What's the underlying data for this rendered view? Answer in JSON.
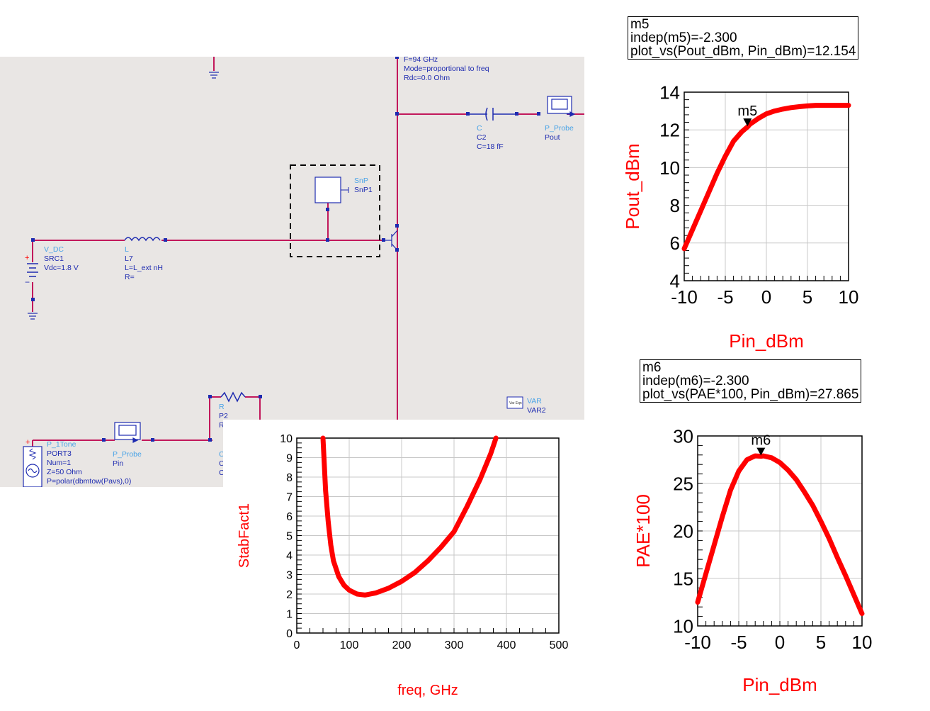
{
  "schematic": {
    "freq_label": "F=94 GHz",
    "mode_label": "Mode=proportional to freq",
    "rdc_label": "Rdc=0.0 Ohm",
    "cap": {
      "type": "C",
      "name": "C2",
      "value": "C=18 fF"
    },
    "probe_out": {
      "type": "P_Probe",
      "name": "Pout"
    },
    "snp": {
      "type": "SnP",
      "name": "SnP1"
    },
    "vdc": {
      "type": "V_DC",
      "name": "SRC1",
      "value": "Vdc=1.8 V"
    },
    "inductor": {
      "type": "L",
      "name": "L7",
      "value": "L=L_ext nH",
      "r": "R="
    },
    "resistor": {
      "type": "R",
      "name": "P2",
      "value": "R"
    },
    "var": {
      "icon": "Var Eqn",
      "type": "VAR",
      "name": "VAR2"
    },
    "port": {
      "type": "P_1Tone",
      "name": "PORT3",
      "num": "Num=1",
      "z": "Z=50 Ohm",
      "p": "P=polar(dbmtow(Pavs),0)"
    },
    "probe_in": {
      "type": "P_Probe",
      "name": "Pin"
    },
    "other_c_1": "C",
    "other_c_2": "C",
    "other_c_3": "C",
    "colors": {
      "wire": "#c2185b",
      "node": "#1e2bb0",
      "label": "#1e2bb0",
      "label_light": "#4aa3e6",
      "background": "#e9e6e4"
    }
  },
  "markers": {
    "m5": {
      "name": "m5",
      "indep": "indep(m5)=-2.300",
      "value": "plot_vs(Pout_dBm, Pin_dBm)=12.154"
    },
    "m6": {
      "name": "m6",
      "indep": "indep(m6)=-2.300",
      "value": "plot_vs(PAE*100, Pin_dBm)=27.865"
    }
  },
  "chart_data": [
    {
      "id": "pout",
      "type": "line",
      "xlabel": "Pin_dBm",
      "ylabel": "Pout_dBm",
      "xlim": [
        -10,
        10
      ],
      "ylim": [
        4,
        14
      ],
      "xticks": [
        -10,
        -5,
        0,
        5,
        10
      ],
      "yticks": [
        4,
        6,
        8,
        10,
        12,
        14
      ],
      "grid": true,
      "color": "#ff0000",
      "series": [
        {
          "x": [
            -10,
            -9,
            -8,
            -7,
            -6,
            -5,
            -4,
            -3,
            -2.3,
            -2,
            -1,
            0,
            1,
            2,
            3,
            4,
            5,
            6,
            7,
            8,
            10
          ],
          "y": [
            5.7,
            6.7,
            7.7,
            8.7,
            9.7,
            10.6,
            11.4,
            11.9,
            12.154,
            12.3,
            12.6,
            12.85,
            13.0,
            13.1,
            13.18,
            13.23,
            13.27,
            13.3,
            13.3,
            13.3,
            13.3
          ]
        }
      ],
      "marker": {
        "label": "m5",
        "x": -2.3,
        "y": 12.154
      }
    },
    {
      "id": "pae",
      "type": "line",
      "xlabel": "Pin_dBm",
      "ylabel": "PAE*100",
      "xlim": [
        -10,
        10
      ],
      "ylim": [
        10,
        30
      ],
      "xticks": [
        -10,
        -5,
        0,
        5,
        10
      ],
      "yticks": [
        10,
        15,
        20,
        25,
        30
      ],
      "grid": true,
      "color": "#ff0000",
      "series": [
        {
          "x": [
            -10,
            -9,
            -8,
            -7,
            -6,
            -5,
            -4,
            -3,
            -2.3,
            -2,
            -1,
            0,
            1,
            2,
            3,
            4,
            5,
            6,
            7,
            8,
            9,
            10
          ],
          "y": [
            12.5,
            15.5,
            18.5,
            21.5,
            24.3,
            26.3,
            27.5,
            27.9,
            27.865,
            27.9,
            27.7,
            27.2,
            26.4,
            25.4,
            24.1,
            22.7,
            21.0,
            19.2,
            17.2,
            15.3,
            13.3,
            11.3
          ]
        }
      ],
      "marker": {
        "label": "m6",
        "x": -2.3,
        "y": 27.865
      }
    },
    {
      "id": "stab",
      "type": "line",
      "xlabel": "freq, GHz",
      "ylabel": "StabFact1",
      "xlim": [
        0,
        500
      ],
      "ylim": [
        0,
        10
      ],
      "xticks": [
        0,
        100,
        200,
        300,
        400,
        500
      ],
      "yticks": [
        0,
        1,
        2,
        3,
        4,
        5,
        6,
        7,
        8,
        9,
        10
      ],
      "grid": true,
      "color": "#ff0000",
      "series": [
        {
          "x": [
            50,
            55,
            60,
            65,
            70,
            80,
            90,
            100,
            115,
            130,
            150,
            175,
            200,
            225,
            250,
            275,
            300,
            325,
            350,
            370,
            380
          ],
          "y": [
            10,
            7.3,
            5.7,
            4.5,
            3.7,
            2.9,
            2.45,
            2.2,
            2.0,
            1.95,
            2.05,
            2.3,
            2.65,
            3.1,
            3.7,
            4.4,
            5.2,
            6.5,
            7.9,
            9.2,
            10
          ]
        }
      ]
    }
  ]
}
